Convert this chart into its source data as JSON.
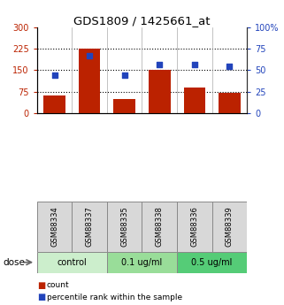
{
  "title": "GDS1809 / 1425661_at",
  "samples": [
    "GSM88334",
    "GSM88337",
    "GSM88335",
    "GSM88338",
    "GSM88336",
    "GSM88339"
  ],
  "bar_values": [
    60,
    226,
    48,
    150,
    88,
    70
  ],
  "dot_values": [
    44,
    67,
    44,
    57,
    57,
    55
  ],
  "bar_color": "#bb2200",
  "dot_color": "#2244bb",
  "left_ylim": [
    0,
    300
  ],
  "right_ylim": [
    0,
    100
  ],
  "left_yticks": [
    0,
    75,
    150,
    225,
    300
  ],
  "right_yticks": [
    0,
    25,
    50,
    75,
    100
  ],
  "right_yticklabels": [
    "0",
    "25",
    "50",
    "75",
    "100%"
  ],
  "groups": [
    {
      "label": "control",
      "span": [
        0,
        2
      ],
      "color": "#cceecc"
    },
    {
      "label": "0.1 ug/ml",
      "span": [
        2,
        4
      ],
      "color": "#99dd99"
    },
    {
      "label": "0.5 ug/ml",
      "span": [
        4,
        6
      ],
      "color": "#55cc77"
    }
  ],
  "dose_label": "dose",
  "legend_count": "count",
  "legend_percentile": "percentile rank within the sample",
  "sample_bg": "#d8d8d8",
  "plot_bg": "#ffffff"
}
